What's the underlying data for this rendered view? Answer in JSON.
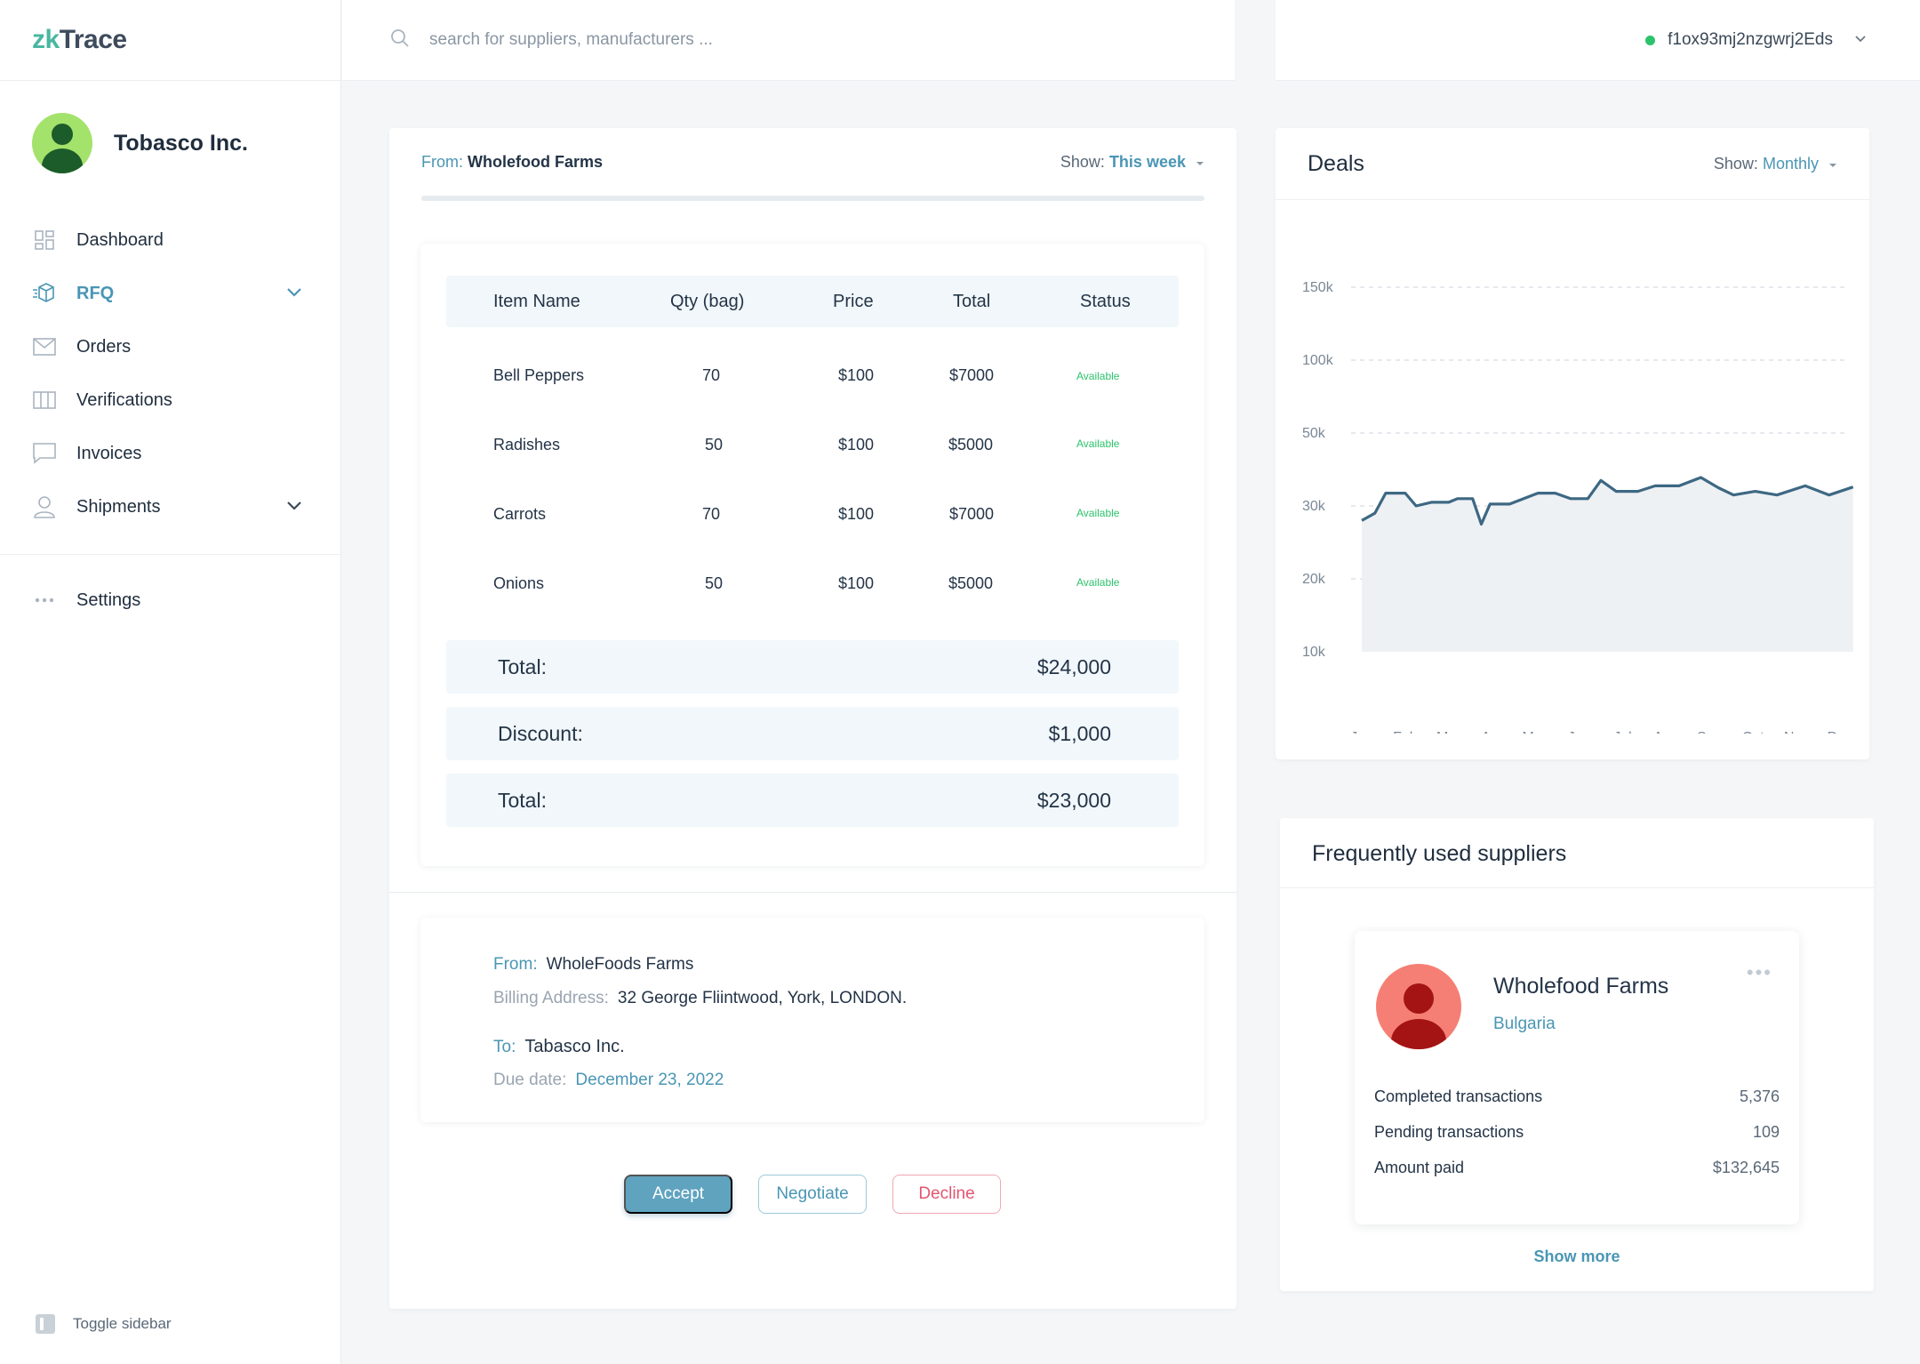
{
  "app": {
    "logo_prefix": "zk",
    "logo_suffix": "Trace"
  },
  "org": {
    "name": "Tobasco Inc."
  },
  "sidebar": {
    "items": [
      {
        "label": "Dashboard",
        "icon": "dashboard-icon"
      },
      {
        "label": "RFQ",
        "icon": "rfq-icon",
        "active": true,
        "expandable": true
      },
      {
        "label": "Orders",
        "icon": "mail-icon"
      },
      {
        "label": "Verifications",
        "icon": "columns-icon"
      },
      {
        "label": "Invoices",
        "icon": "chat-icon"
      },
      {
        "label": "Shipments",
        "icon": "user-icon",
        "expandable": true
      }
    ],
    "settings_label": "Settings",
    "toggle_label": "Toggle sidebar"
  },
  "search": {
    "placeholder": "search for suppliers, manufacturers ..."
  },
  "account": {
    "id": "f1ox93mj2nzgwrj2Eds",
    "status_color": "#2cc36b"
  },
  "rfq": {
    "from_label": "From:",
    "from_value": "Wholefood Farms",
    "show_label": "Show:",
    "show_value": "This week",
    "columns": [
      "Item Name",
      "Qty (bag)",
      "Price",
      "Total",
      "Status"
    ],
    "rows": [
      {
        "name": "Bell Peppers",
        "qty": "70",
        "price": "$100",
        "total": "$7000",
        "status": "Available"
      },
      {
        "name": "Radishes",
        "qty": "50",
        "price": "$100",
        "total": "$5000",
        "status": "Available"
      },
      {
        "name": "Carrots",
        "qty": "70",
        "price": "$100",
        "total": "$7000",
        "status": "Available"
      },
      {
        "name": "Onions",
        "qty": "50",
        "price": "$100",
        "total": "$5000",
        "status": "Available"
      }
    ],
    "summary": [
      {
        "label": "Total:",
        "value": "$24,000"
      },
      {
        "label": "Discount:",
        "value": "$1,000"
      },
      {
        "label": "Total:",
        "value": "$23,000"
      }
    ],
    "billing": {
      "from_label": "From:",
      "from_value": "WholeFoods Farms",
      "address_label": "Billing Address:",
      "address_value": "32 George Fliintwood, York, LONDON.",
      "to_label": "To:",
      "to_value": "Tabasco Inc.",
      "due_label": "Due date:",
      "due_value": "December 23, 2022"
    },
    "actions": {
      "accept": "Accept",
      "negotiate": "Negotiate",
      "decline": "Decline"
    }
  },
  "deals": {
    "title": "Deals",
    "show_label": "Show:",
    "show_value": "Monthly"
  },
  "chart_data": {
    "type": "area",
    "title": "",
    "xlabel": "",
    "ylabel": "",
    "categories": [
      "Jan",
      "Feb",
      "Mar",
      "Apr",
      "May",
      "Jun",
      "Jul",
      "Aug",
      "Sep",
      "Oct",
      "Nov",
      "Dec"
    ],
    "y_ticks": [
      "150k",
      "100k",
      "50k",
      "30k",
      "20k",
      "10k"
    ],
    "grid": "dashed horizontal",
    "line_color": "#3d6883",
    "fill_color": "#eef1f4",
    "points": [
      [
        0,
        28000
      ],
      [
        0.3,
        29000
      ],
      [
        0.55,
        33500
      ],
      [
        1,
        33500
      ],
      [
        1.25,
        30000
      ],
      [
        1.6,
        31000
      ],
      [
        2,
        31000
      ],
      [
        2.2,
        32000
      ],
      [
        2.55,
        32000
      ],
      [
        2.75,
        27500
      ],
      [
        2.95,
        30500
      ],
      [
        3.4,
        30500
      ],
      [
        4.05,
        33500
      ],
      [
        4.45,
        33500
      ],
      [
        4.8,
        32000
      ],
      [
        5.2,
        32000
      ],
      [
        5.5,
        37000
      ],
      [
        5.85,
        34000
      ],
      [
        6.35,
        34000
      ],
      [
        6.75,
        35500
      ],
      [
        7.3,
        35500
      ],
      [
        7.8,
        37800
      ],
      [
        8.2,
        35000
      ],
      [
        8.55,
        33000
      ],
      [
        9.05,
        34000
      ],
      [
        9.55,
        33000
      ],
      [
        10.2,
        35500
      ],
      [
        10.75,
        33000
      ],
      [
        11.3,
        35200
      ]
    ]
  },
  "suppliers": {
    "title": "Frequently used suppliers",
    "card": {
      "name": "Wholefood Farms",
      "country": "Bulgaria",
      "menu": "•••",
      "stats": [
        {
          "label": "Completed transactions",
          "value": "5,376"
        },
        {
          "label": "Pending transactions",
          "value": "109"
        },
        {
          "label": "Amount paid",
          "value": "$132,645"
        }
      ]
    },
    "show_more": "Show more"
  }
}
